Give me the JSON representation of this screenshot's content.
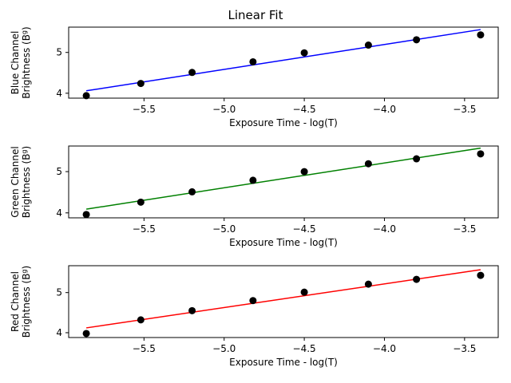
{
  "figure": {
    "title": "Linear Fit"
  },
  "chart_data": [
    {
      "type": "scatter",
      "xlabel": "Exposure Time - log(T)",
      "ylabel_line1": "Blue Channel",
      "ylabel_line2": "Brightness (B",
      "ylabel_sup": "g",
      "ylabel_close": ")",
      "xlim": [
        -5.97,
        -3.29
      ],
      "ylim": [
        3.88,
        5.62
      ],
      "xticks": [
        -5.5,
        -5.0,
        -4.5,
        -4.0,
        -3.5
      ],
      "xtick_labels": [
        "−5.5",
        "−5.0",
        "−4.5",
        "−4.0",
        "−3.5"
      ],
      "yticks": [
        4,
        5
      ],
      "ytick_labels": [
        "4",
        "5"
      ],
      "points": {
        "x": [
          -5.86,
          -5.52,
          -5.2,
          -4.82,
          -4.5,
          -4.1,
          -3.8,
          -3.4
        ],
        "y": [
          3.94,
          4.24,
          4.51,
          4.77,
          4.99,
          5.18,
          5.31,
          5.43
        ]
      },
      "fit": {
        "x": [
          -5.86,
          -3.4
        ],
        "y": [
          4.06,
          5.56
        ],
        "color": "#0000ff"
      },
      "point_color": "#000000"
    },
    {
      "type": "scatter",
      "xlabel": "Exposure Time - log(T)",
      "ylabel_line1": "Green Channel",
      "ylabel_line2": "Brightness (B",
      "ylabel_sup": "g",
      "ylabel_close": ")",
      "xlim": [
        -5.97,
        -3.29
      ],
      "ylim": [
        3.88,
        5.62
      ],
      "xticks": [
        -5.5,
        -5.0,
        -4.5,
        -4.0,
        -3.5
      ],
      "xtick_labels": [
        "−5.5",
        "−5.0",
        "−4.5",
        "−4.0",
        "−3.5"
      ],
      "yticks": [
        4,
        5
      ],
      "ytick_labels": [
        "4",
        "5"
      ],
      "points": {
        "x": [
          -5.86,
          -5.52,
          -5.2,
          -4.82,
          -4.5,
          -4.1,
          -3.8,
          -3.4
        ],
        "y": [
          3.96,
          4.26,
          4.51,
          4.79,
          5.0,
          5.19,
          5.31,
          5.43
        ]
      },
      "fit": {
        "x": [
          -5.86,
          -3.4
        ],
        "y": [
          4.09,
          5.57
        ],
        "color": "#008000"
      },
      "point_color": "#000000"
    },
    {
      "type": "scatter",
      "xlabel": "Exposure Time - log(T)",
      "ylabel_line1": "Red Channel",
      "ylabel_line2": "Brightness (B",
      "ylabel_sup": "g",
      "ylabel_close": ")",
      "xlim": [
        -5.97,
        -3.29
      ],
      "ylim": [
        3.88,
        5.67
      ],
      "xticks": [
        -5.5,
        -5.0,
        -4.5,
        -4.0,
        -3.5
      ],
      "xtick_labels": [
        "−5.5",
        "−5.0",
        "−4.5",
        "−4.0",
        "−3.5"
      ],
      "yticks": [
        4,
        5
      ],
      "ytick_labels": [
        "4",
        "5"
      ],
      "points": {
        "x": [
          -5.86,
          -5.52,
          -5.2,
          -4.82,
          -4.5,
          -4.1,
          -3.8,
          -3.4
        ],
        "y": [
          3.98,
          4.32,
          4.55,
          4.8,
          5.01,
          5.21,
          5.33,
          5.43
        ]
      },
      "fit": {
        "x": [
          -5.86,
          -3.4
        ],
        "y": [
          4.12,
          5.57
        ],
        "color": "#ff0000"
      },
      "point_color": "#000000"
    }
  ]
}
